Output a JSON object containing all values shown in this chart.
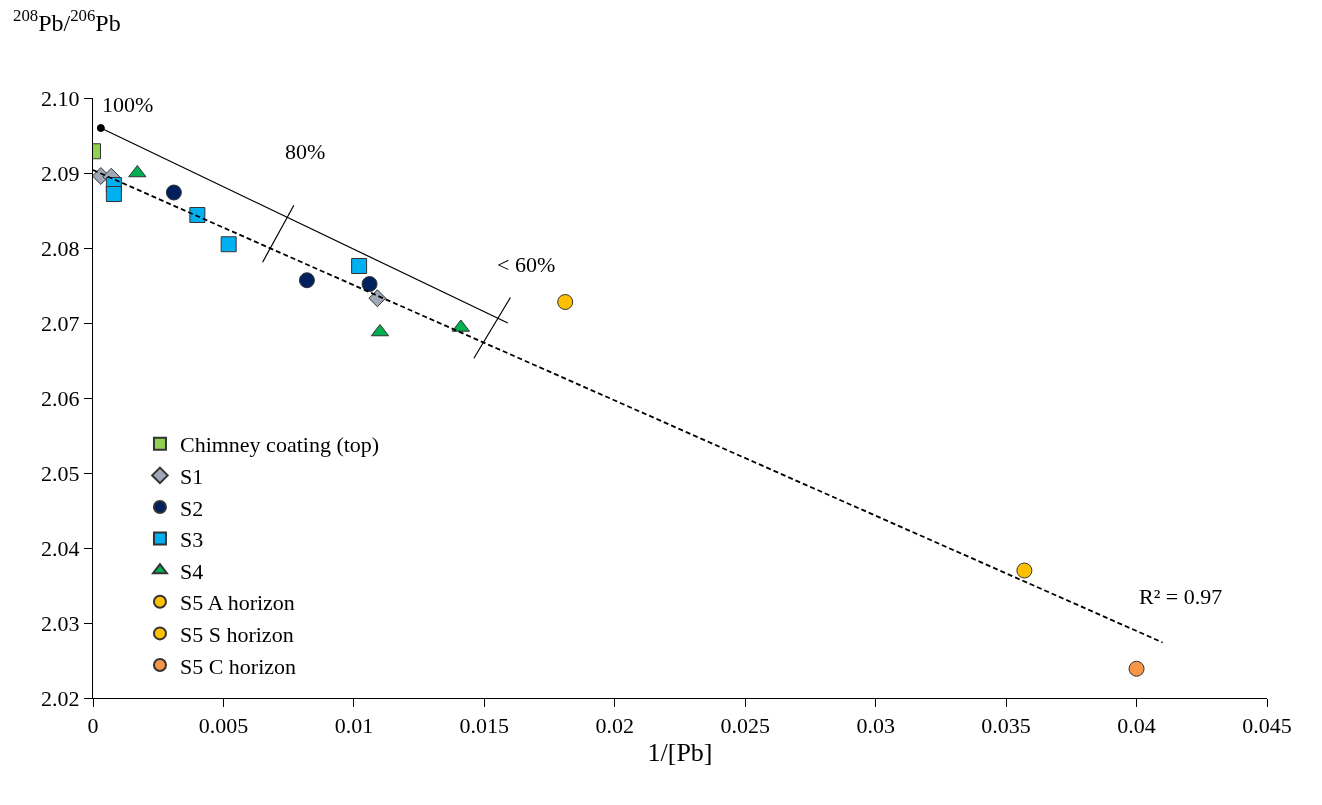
{
  "chart_data": {
    "type": "scatter",
    "xlabel": "1/[Pb]",
    "ylabel": "$^{208}$Pb/$^{206}$Pb",
    "xlim": [
      0,
      0.045
    ],
    "xticks": [
      0,
      0.005,
      0.01,
      0.015,
      0.02,
      0.025,
      0.03,
      0.035,
      0.04,
      0.045
    ],
    "ylim": [
      2.02,
      2.1
    ],
    "yticks": [
      2.02,
      2.03,
      2.04,
      2.05,
      2.06,
      2.07,
      2.08,
      2.09,
      {
        "value": 2.1,
        "label": "2.10"
      }
    ],
    "legend": "bottom left",
    "series": [
      {
        "name": "Chimney coating (top)",
        "color": "#92d050",
        "marker": "square",
        "x": [
          0.0
        ],
        "values": [
          2.0929
        ]
      },
      {
        "name": "S1",
        "color": "#a0a8b8",
        "marker": "diamond",
        "x": [
          0.0003,
          0.0007,
          0.0109
        ],
        "values": [
          2.0896,
          2.0895,
          2.0733
        ]
      },
      {
        "name": "S2",
        "color": "#002060",
        "marker": "circle",
        "x": [
          0.0031,
          0.0082,
          0.0106
        ],
        "values": [
          2.0874,
          2.0757,
          2.0752
        ]
      },
      {
        "name": "S3",
        "color": "#00b0f0",
        "marker": "square",
        "x": [
          0.0008,
          0.0008,
          0.004,
          0.0052,
          0.0102
        ],
        "values": [
          2.0884,
          2.0872,
          2.0844,
          2.0805,
          2.0776
        ]
      },
      {
        "name": "S4",
        "color": "#00b050",
        "marker": "triangle",
        "x": [
          0.0017,
          0.011,
          0.0141
        ],
        "values": [
          2.09,
          2.0688,
          2.0694
        ]
      },
      {
        "name": "S5 A horizon",
        "color": "#ffc000",
        "marker": "circle",
        "x": [
          0.0181
        ],
        "values": [
          2.0728
        ]
      },
      {
        "name": "S5 S horizon",
        "color": "#ffc000",
        "marker": "circle",
        "x": [
          0.0357
        ],
        "values": [
          2.037
        ]
      },
      {
        "name": "S5 C horizon",
        "color": "#f79646",
        "marker": "circle",
        "x": [
          0.04
        ],
        "values": [
          2.0239
        ]
      },
      {
        "type": "line",
        "color": "#000000",
        "line_style": "dashed",
        "marker": "none",
        "x": [
          0.0,
          0.041
        ],
        "values": [
          2.0904,
          2.0274
        ]
      },
      {
        "type": "line",
        "color": "#000000",
        "line_style": "solid",
        "marker": "none",
        "x": [
          0.0003,
          0.0159
        ],
        "values": [
          2.096,
          2.07
        ]
      },
      {
        "type": "line",
        "color": "#000000",
        "line_style": "solid",
        "marker": "none",
        "x": [
          0.0065,
          0.0077
        ],
        "values": [
          2.0781,
          2.0857
        ]
      },
      {
        "type": "line",
        "color": "#000000",
        "line_style": "solid",
        "marker": "none",
        "x": [
          0.0146,
          0.016
        ],
        "values": [
          2.0653,
          2.0734
        ]
      },
      {
        "type": "scatter",
        "color": "#000000",
        "marker": "circle",
        "x": [
          0.0003
        ],
        "values": [
          2.096
        ]
      }
    ],
    "annotations": [
      "100%",
      "80%",
      "< 60%",
      "R² = 0.97"
    ]
  }
}
